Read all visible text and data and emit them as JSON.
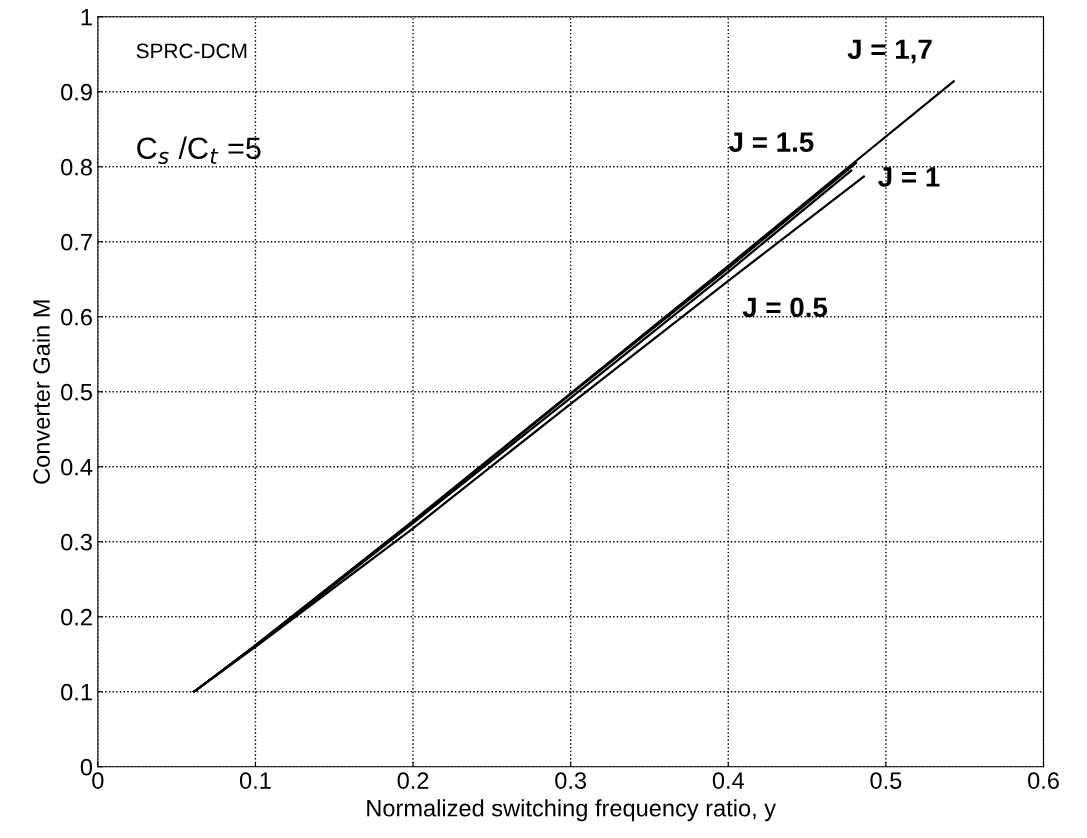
{
  "chart_data": {
    "type": "line",
    "xlabel": "Normalized switching frequency ratio, y",
    "ylabel": "Converter Gain M",
    "annotations": [
      "SPRC-DCM",
      "C$_{s}$ /C$_{t}$ =5"
    ],
    "series": [
      {
        "name": "J = 1,7",
        "color": "#000000",
        "x": [
          0.061,
          0.1,
          0.2,
          0.3,
          0.4,
          0.48,
          0.543
        ],
        "values": [
          0.1,
          0.162,
          0.328,
          0.498,
          0.668,
          0.806,
          0.914
        ]
      },
      {
        "name": "J = 1.5",
        "color": "#000000",
        "x": [
          0.061,
          0.1,
          0.2,
          0.3,
          0.4,
          0.481
        ],
        "values": [
          0.1,
          0.162,
          0.327,
          0.497,
          0.665,
          0.805
        ]
      },
      {
        "name": "J = 1",
        "color": "#000000",
        "x": [
          0.061,
          0.1,
          0.2,
          0.3,
          0.4,
          0.486
        ],
        "values": [
          0.1,
          0.16,
          0.318,
          0.484,
          0.648,
          0.787
        ]
      },
      {
        "name": "J = 0.5",
        "color": "#000000",
        "x": [
          0.061,
          0.1,
          0.2,
          0.3,
          0.4,
          0.478
        ],
        "values": [
          0.1,
          0.161,
          0.325,
          0.492,
          0.66,
          0.795
        ]
      }
    ],
    "xlim": [
      0,
      0.6
    ],
    "xticks": [
      0,
      0.1,
      0.2,
      0.3,
      0.4,
      0.5,
      0.6
    ],
    "ylim": [
      0,
      1
    ],
    "yticks": [
      0,
      0.1,
      0.2,
      0.3,
      0.4,
      0.5,
      0.6,
      0.7,
      0.8,
      0.9,
      1
    ],
    "grid": true,
    "legend": false,
    "marker": "none",
    "line_style": "solid"
  }
}
